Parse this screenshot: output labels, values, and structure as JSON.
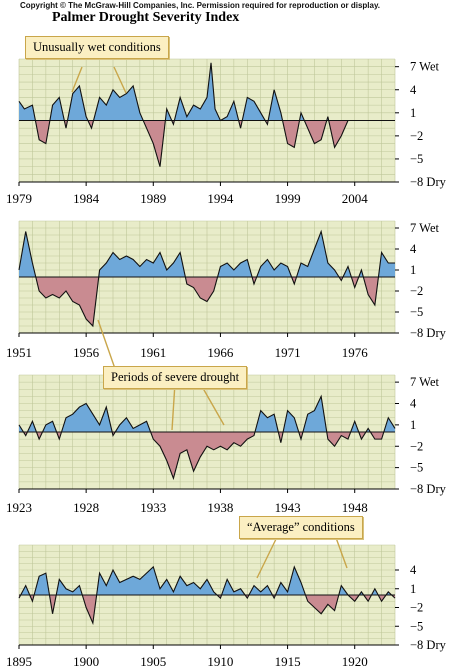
{
  "header": {
    "copyright": "Copyright © The McGraw-Hill Companies, Inc. Permission required for reproduction or display.",
    "title": "Palmer Drought Severity Index"
  },
  "callouts": {
    "wet": "Unusually wet conditions",
    "drought": "Periods of severe drought",
    "average": "“Average” conditions"
  },
  "colors": {
    "plot_bg": "#e8ecc9",
    "grid": "#bfc79a",
    "wet_fill": "#6ea8d9",
    "dry_fill": "#c98b91",
    "line": "#111111",
    "callout_bg": "#fbefc2"
  },
  "chart_data": [
    {
      "type": "area",
      "x_range": [
        1979,
        2007
      ],
      "x_ticks": [
        1979,
        1984,
        1989,
        1994,
        1999,
        2004
      ],
      "ylim": [
        -8,
        8
      ],
      "y_ticks": [
        "7 Wet",
        "4",
        "1",
        "−2",
        "−5",
        "−8 Dry"
      ],
      "y_tick_values": [
        7,
        4,
        1,
        -2,
        -5,
        -8
      ],
      "series": [
        {
          "x": [
            1979,
            1979.4,
            1980,
            1980.5,
            1981,
            1981.5,
            1982,
            1982.5,
            1983,
            1983.5,
            1984,
            1984.4,
            1985,
            1985.5,
            1986,
            1986.5,
            1987,
            1987.5,
            1988,
            1988.5,
            1989,
            1989.5,
            1990,
            1990.5,
            1991,
            1991.5,
            1992,
            1992.5,
            1993,
            1993.3,
            1993.6,
            1994,
            1994.5,
            1995,
            1995.5,
            1996,
            1996.5,
            1997,
            1997.5,
            1998,
            1998.5,
            1999,
            1999.5,
            2000,
            2000.5,
            2001,
            2001.5,
            2002,
            2002.5,
            2003,
            2003.5,
            2004,
            2005,
            2006,
            2007
          ],
          "values": [
            2.5,
            1.5,
            2.0,
            -2.5,
            -3.0,
            2.0,
            3.0,
            -1.0,
            3.5,
            4.5,
            0.5,
            -1.0,
            3.0,
            2.0,
            4.0,
            3.0,
            3.5,
            4.5,
            1.0,
            -1.0,
            -3.0,
            -6.0,
            1.5,
            -0.5,
            3.0,
            0.5,
            2.0,
            1.5,
            3.0,
            7.5,
            1.5,
            0.0,
            0.5,
            2.5,
            -1.0,
            3.0,
            2.5,
            1.0,
            -0.5,
            4.0,
            1.0,
            -3.0,
            -3.5,
            1.0,
            -1.0,
            -3.0,
            -2.5,
            0.5,
            -3.5,
            -2.0,
            0.0,
            0.0,
            0.0,
            0.0,
            0.0
          ]
        }
      ]
    },
    {
      "type": "area",
      "x_range": [
        1951,
        1979
      ],
      "x_ticks": [
        1951,
        1956,
        1961,
        1966,
        1971,
        1976
      ],
      "ylim": [
        -8,
        8
      ],
      "y_ticks": [
        "7 Wet",
        "4",
        "1",
        "−2",
        "−5",
        "−8 Dry"
      ],
      "y_tick_values": [
        7,
        4,
        1,
        -2,
        -5,
        -8
      ],
      "series": [
        {
          "x": [
            1951,
            1951.5,
            1952,
            1952.5,
            1953,
            1953.5,
            1954,
            1954.5,
            1955,
            1955.5,
            1956,
            1956.5,
            1957,
            1957.5,
            1958,
            1958.5,
            1959,
            1959.5,
            1960,
            1960.5,
            1961,
            1961.5,
            1962,
            1962.5,
            1963,
            1963.5,
            1964,
            1964.5,
            1965,
            1965.5,
            1966,
            1966.5,
            1967,
            1967.5,
            1968,
            1968.5,
            1969,
            1969.5,
            1970,
            1970.5,
            1971,
            1971.5,
            1972,
            1972.5,
            1973,
            1973.5,
            1974,
            1974.5,
            1975,
            1975.5,
            1976,
            1976.5,
            1977,
            1977.5,
            1978,
            1978.5,
            1979
          ],
          "values": [
            1.0,
            6.5,
            2.0,
            -2.0,
            -3.0,
            -2.5,
            -3.0,
            -2.0,
            -3.5,
            -4.0,
            -6.0,
            -7.0,
            1.0,
            2.0,
            3.5,
            2.5,
            3.0,
            2.5,
            1.5,
            2.5,
            2.0,
            3.5,
            1.0,
            2.0,
            3.5,
            -1.0,
            -1.5,
            -3.0,
            -3.5,
            -2.0,
            1.5,
            2.0,
            1.0,
            2.0,
            2.5,
            -1.0,
            1.5,
            2.5,
            1.0,
            2.0,
            1.5,
            -1.0,
            2.0,
            1.5,
            4.0,
            6.5,
            2.0,
            1.0,
            -0.5,
            1.5,
            -1.5,
            1.0,
            -2.5,
            -4.0,
            3.5,
            2.0,
            2.0
          ]
        }
      ]
    },
    {
      "type": "area",
      "x_range": [
        1923,
        1951
      ],
      "x_ticks": [
        1923,
        1928,
        1933,
        1938,
        1943,
        1948
      ],
      "ylim": [
        -8,
        8
      ],
      "y_ticks": [
        "7 Wet",
        "4",
        "1",
        "−2",
        "−5",
        "−8 Dry"
      ],
      "y_tick_values": [
        7,
        4,
        1,
        -2,
        -5,
        -8
      ],
      "series": [
        {
          "x": [
            1923,
            1923.5,
            1924,
            1924.5,
            1925,
            1925.5,
            1926,
            1926.5,
            1927,
            1927.5,
            1928,
            1928.5,
            1929,
            1929.5,
            1930,
            1930.5,
            1931,
            1931.5,
            1932,
            1932.5,
            1933,
            1933.5,
            1934,
            1934.5,
            1935,
            1935.5,
            1936,
            1936.5,
            1937,
            1937.5,
            1938,
            1938.5,
            1939,
            1939.5,
            1940,
            1940.5,
            1941,
            1941.5,
            1942,
            1942.5,
            1943,
            1943.5,
            1944,
            1944.5,
            1945,
            1945.5,
            1946,
            1946.5,
            1947,
            1947.5,
            1948,
            1948.5,
            1949,
            1949.5,
            1950,
            1950.5,
            1951
          ],
          "values": [
            1.0,
            -0.5,
            1.5,
            -1.0,
            1.0,
            1.5,
            -1.0,
            2.0,
            2.5,
            3.5,
            4.0,
            2.5,
            1.0,
            3.5,
            -0.5,
            1.0,
            2.0,
            0.5,
            1.0,
            1.5,
            -1.0,
            -2.0,
            -4.0,
            -6.5,
            -3.0,
            -2.5,
            -5.5,
            -3.5,
            -2.0,
            -2.5,
            -2.0,
            -2.5,
            -1.5,
            -2.0,
            -1.0,
            -0.5,
            3.0,
            2.0,
            2.5,
            -1.5,
            3.0,
            2.0,
            -1.0,
            2.5,
            3.0,
            5.0,
            -1.0,
            -2.0,
            -0.5,
            -1.0,
            1.5,
            -1.0,
            0.5,
            -1.0,
            -1.0,
            2.0,
            0.5
          ]
        }
      ]
    },
    {
      "type": "area",
      "x_range": [
        1895,
        1923
      ],
      "x_ticks": [
        1895,
        1900,
        1905,
        1910,
        1915,
        1920
      ],
      "ylim": [
        -8,
        8
      ],
      "y_ticks": [
        "4",
        "1",
        "−2",
        "−5",
        "−8 Dry"
      ],
      "y_tick_values": [
        4,
        1,
        -2,
        -5,
        -8
      ],
      "series": [
        {
          "x": [
            1895,
            1895.5,
            1896,
            1896.5,
            1897,
            1897.5,
            1898,
            1898.5,
            1899,
            1899.5,
            1900,
            1900.5,
            1901,
            1901.5,
            1902,
            1902.5,
            1903,
            1903.5,
            1904,
            1904.5,
            1905,
            1905.5,
            1906,
            1906.5,
            1907,
            1907.5,
            1908,
            1908.5,
            1909,
            1909.5,
            1910,
            1910.5,
            1911,
            1911.5,
            1912,
            1912.5,
            1913,
            1913.5,
            1914,
            1914.5,
            1915,
            1915.5,
            1916,
            1916.5,
            1917,
            1917.5,
            1918,
            1918.5,
            1919,
            1919.5,
            1920,
            1920.5,
            1921,
            1921.5,
            1922,
            1922.5,
            1923
          ],
          "values": [
            -0.5,
            1.5,
            -1.0,
            3.0,
            3.5,
            -3.0,
            2.5,
            1.0,
            0.5,
            1.5,
            -2.0,
            -4.5,
            3.5,
            1.5,
            4.0,
            2.0,
            2.5,
            3.0,
            2.5,
            3.5,
            4.5,
            1.0,
            2.5,
            0.5,
            3.0,
            1.5,
            2.0,
            1.0,
            2.5,
            0.5,
            -0.5,
            2.5,
            0.5,
            1.0,
            -0.5,
            1.5,
            0.5,
            1.5,
            -0.5,
            2.0,
            0.5,
            4.5,
            2.0,
            -1.0,
            -2.0,
            -3.0,
            -1.5,
            -2.5,
            1.5,
            0.0,
            -1.0,
            0.5,
            -1.0,
            1.0,
            -1.0,
            0.5,
            -0.5
          ]
        }
      ]
    }
  ]
}
